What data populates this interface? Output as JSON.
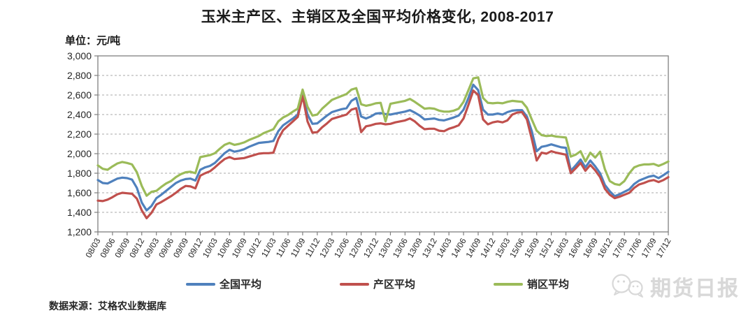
{
  "header": {
    "title": "玉米主产区、主销区及全国平均价格变化, 2008-2017"
  },
  "chart": {
    "unit_label": "单位：元/吨"
  },
  "legend": [
    {
      "label": "全国平均",
      "color": "#4f81bd"
    },
    {
      "label": "产区平均",
      "color": "#c0504d"
    },
    {
      "label": "销区平均",
      "color": "#9bbb59"
    }
  ],
  "footer": {
    "source": "数据来源：艾格农业数据库",
    "watermark": "期货日报"
  },
  "chart_data": {
    "type": "line",
    "title": "玉米主产区、主销区及全国平均价格变化, 2008-2017",
    "xlabel": "",
    "ylabel": "元/吨",
    "ylim": [
      1200,
      3000
    ],
    "grid": "dashed-horizontal",
    "legend_position": "bottom",
    "x": {
      "start": "2008-03",
      "end": "2017-12",
      "step": "month",
      "points": 118
    },
    "x_tick_labels": [
      "08/03",
      "08/06",
      "08/09",
      "08/12",
      "09/03",
      "09/06",
      "09/09",
      "09/12",
      "10/03",
      "10/06",
      "10/09",
      "10/12",
      "11/03",
      "11/06",
      "11/09",
      "11/12",
      "12/03",
      "12/06",
      "12/09",
      "12/12",
      "13/03",
      "13/06",
      "13/09",
      "13/12",
      "14/03",
      "14/06",
      "14/09",
      "14/12",
      "15/03",
      "15/06",
      "15/09",
      "15/12",
      "16/03",
      "16/06",
      "16/09",
      "16/12",
      "17/03",
      "17/06",
      "17/09",
      "17/12"
    ],
    "y_ticks": [
      1200,
      1400,
      1600,
      1800,
      2000,
      2200,
      2400,
      2600,
      2800,
      3000
    ],
    "y_tick_labels": [
      "1,200",
      "1,400",
      "1,600",
      "1,800",
      "2,000",
      "2,200",
      "2,400",
      "2,600",
      "2,800",
      "3,000"
    ],
    "series": [
      {
        "name": "全国平均",
        "color": "#4f81bd",
        "values": [
          1730,
          1700,
          1695,
          1720,
          1745,
          1755,
          1750,
          1735,
          1650,
          1500,
          1420,
          1465,
          1545,
          1580,
          1620,
          1660,
          1700,
          1725,
          1740,
          1745,
          1725,
          1835,
          1860,
          1875,
          1905,
          1955,
          2005,
          2040,
          2020,
          2030,
          2045,
          2070,
          2090,
          2110,
          2115,
          2120,
          2130,
          2230,
          2290,
          2325,
          2360,
          2400,
          2610,
          2400,
          2305,
          2310,
          2350,
          2390,
          2425,
          2440,
          2455,
          2465,
          2540,
          2570,
          2380,
          2360,
          2380,
          2410,
          2415,
          2405,
          2400,
          2410,
          2420,
          2430,
          2445,
          2420,
          2390,
          2350,
          2355,
          2360,
          2345,
          2340,
          2355,
          2370,
          2390,
          2450,
          2570,
          2705,
          2650,
          2450,
          2400,
          2400,
          2410,
          2400,
          2425,
          2440,
          2445,
          2445,
          2380,
          2230,
          2025,
          2070,
          2080,
          2095,
          2080,
          2065,
          2060,
          1825,
          1880,
          1940,
          1860,
          1930,
          1870,
          1800,
          1680,
          1615,
          1565,
          1585,
          1610,
          1635,
          1690,
          1725,
          1745,
          1765,
          1775,
          1750,
          1780,
          1815
        ]
      },
      {
        "name": "产区平均",
        "color": "#c0504d",
        "values": [
          1520,
          1515,
          1530,
          1555,
          1585,
          1600,
          1595,
          1590,
          1540,
          1420,
          1340,
          1395,
          1480,
          1505,
          1535,
          1565,
          1600,
          1640,
          1670,
          1665,
          1645,
          1775,
          1800,
          1820,
          1860,
          1905,
          1945,
          1965,
          1945,
          1950,
          1955,
          1970,
          1985,
          2000,
          2005,
          2005,
          2010,
          2150,
          2240,
          2285,
          2330,
          2375,
          2590,
          2330,
          2215,
          2220,
          2270,
          2310,
          2355,
          2370,
          2385,
          2400,
          2450,
          2465,
          2220,
          2280,
          2290,
          2305,
          2310,
          2300,
          2305,
          2320,
          2330,
          2340,
          2360,
          2330,
          2285,
          2250,
          2255,
          2255,
          2235,
          2230,
          2255,
          2270,
          2290,
          2360,
          2500,
          2645,
          2600,
          2350,
          2300,
          2320,
          2330,
          2320,
          2340,
          2400,
          2420,
          2425,
          2350,
          2150,
          1930,
          2010,
          2000,
          2025,
          2010,
          2000,
          1990,
          1800,
          1850,
          1905,
          1825,
          1885,
          1830,
          1760,
          1640,
          1580,
          1545,
          1560,
          1580,
          1600,
          1650,
          1685,
          1700,
          1720,
          1730,
          1710,
          1730,
          1760
        ]
      },
      {
        "name": "销区平均",
        "color": "#9bbb59",
        "values": [
          1880,
          1845,
          1835,
          1870,
          1900,
          1915,
          1905,
          1890,
          1810,
          1670,
          1570,
          1610,
          1620,
          1660,
          1695,
          1720,
          1760,
          1790,
          1810,
          1815,
          1800,
          1965,
          1975,
          1985,
          2005,
          2050,
          2090,
          2110,
          2090,
          2100,
          2115,
          2140,
          2160,
          2180,
          2210,
          2230,
          2250,
          2330,
          2370,
          2395,
          2430,
          2460,
          2655,
          2480,
          2390,
          2400,
          2460,
          2505,
          2550,
          2570,
          2590,
          2610,
          2655,
          2670,
          2505,
          2490,
          2500,
          2515,
          2520,
          2330,
          2510,
          2520,
          2530,
          2540,
          2560,
          2530,
          2495,
          2460,
          2465,
          2460,
          2440,
          2430,
          2430,
          2440,
          2460,
          2530,
          2650,
          2770,
          2780,
          2570,
          2520,
          2515,
          2520,
          2515,
          2530,
          2540,
          2535,
          2530,
          2470,
          2350,
          2235,
          2190,
          2180,
          2185,
          2175,
          2170,
          2165,
          1970,
          1990,
          2025,
          1920,
          2010,
          1960,
          2020,
          1840,
          1720,
          1690,
          1680,
          1720,
          1800,
          1860,
          1880,
          1890,
          1890,
          1895,
          1875,
          1895,
          1920
        ]
      }
    ]
  }
}
